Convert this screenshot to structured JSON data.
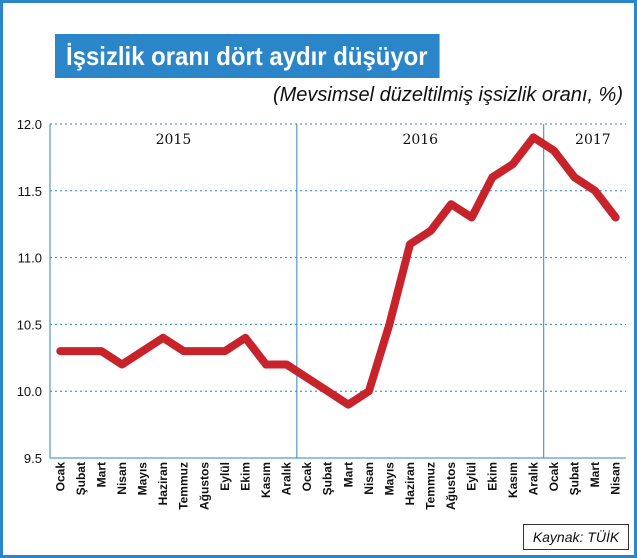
{
  "header": {
    "title": "İşsizlik oranı dört aydır düşüyor",
    "subtitle": "(Mevsimsel düzeltilmiş işsizlik oranı, %)"
  },
  "footer": {
    "source": "Kaynak: TÜİK"
  },
  "colors": {
    "accent": "#2a86c8",
    "line": "#c8232a",
    "grid": "#2a86c8"
  },
  "chart_data": {
    "type": "line",
    "title": "İşsizlik oranı dört aydır düşüyor",
    "subtitle": "(Mevsimsel düzeltilmiş işsizlik oranı, %)",
    "xlabel": "",
    "ylabel": "",
    "ylim": [
      9.5,
      12.0
    ],
    "yticks": [
      "12.0",
      "11.5",
      "11.0",
      "10.5",
      "10.0",
      "9.5"
    ],
    "years": [
      "2015",
      "2016",
      "2017"
    ],
    "categories": [
      "Ocak",
      "Şubat",
      "Mart",
      "Nisan",
      "Mayıs",
      "Haziran",
      "Temmuz",
      "Ağustos",
      "Eylül",
      "Ekim",
      "Kasım",
      "Aralık",
      "Ocak",
      "Şubat",
      "Mart",
      "Nisan",
      "Mayıs",
      "Haziran",
      "Temmuz",
      "Ağustos",
      "Eylül",
      "Ekim",
      "Kasım",
      "Aralık",
      "Ocak",
      "Şubat",
      "Mart",
      "Nisan"
    ],
    "x_dates": [
      "2015-01",
      "2015-02",
      "2015-03",
      "2015-04",
      "2015-05",
      "2015-06",
      "2015-07",
      "2015-08",
      "2015-09",
      "2015-10",
      "2015-11",
      "2015-12",
      "2016-01",
      "2016-02",
      "2016-03",
      "2016-04",
      "2016-05",
      "2016-06",
      "2016-07",
      "2016-08",
      "2016-09",
      "2016-10",
      "2016-11",
      "2016-12",
      "2017-01",
      "2017-02",
      "2017-03",
      "2017-04"
    ],
    "values": [
      10.3,
      10.3,
      10.3,
      10.2,
      10.3,
      10.4,
      10.3,
      10.3,
      10.3,
      10.4,
      10.2,
      10.2,
      10.1,
      10.0,
      9.9,
      10.0,
      10.5,
      11.1,
      11.2,
      11.4,
      11.3,
      11.6,
      11.7,
      11.9,
      11.8,
      11.6,
      11.5,
      11.3
    ],
    "grid": true
  }
}
